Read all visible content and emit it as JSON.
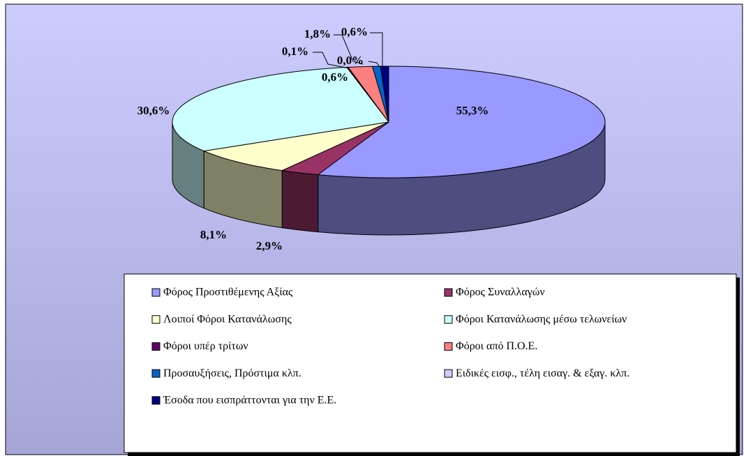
{
  "chart_data": {
    "type": "pie3d",
    "categories": [
      "Φόρος Προστιθέμενης Αξίας",
      "Φόρος Συναλλαγών",
      "Λοιποί Φόροι Κατανάλωσης",
      "Φόροι Κατανάλωσης μέσω τελωνείων",
      "Φόροι υπέρ τρίτων",
      "Φόροι από Π.Ο.Ε.",
      "Προσαυξήσεις, Πρόστιμα κλπ.",
      "Ειδικές εισφ., τέλη εισαγ. & εξαγ. κλπ.",
      "Έσοδα που εισπράττονται για την Ε.Ε."
    ],
    "values": [
      55.3,
      2.9,
      8.1,
      30.6,
      0.1,
      1.8,
      0.6,
      0.0,
      0.6
    ],
    "value_labels": [
      "55,3%",
      "2,9%",
      "8,1%",
      "30,6%",
      "0,1%",
      "1,8%",
      "0,6%",
      "0,0%",
      "0,6%"
    ],
    "colors": [
      "#9999ff",
      "#993366",
      "#ffffcc",
      "#ccffff",
      "#660066",
      "#ff8080",
      "#0066cc",
      "#ccccff",
      "#000080"
    ],
    "legend": "bottom"
  }
}
